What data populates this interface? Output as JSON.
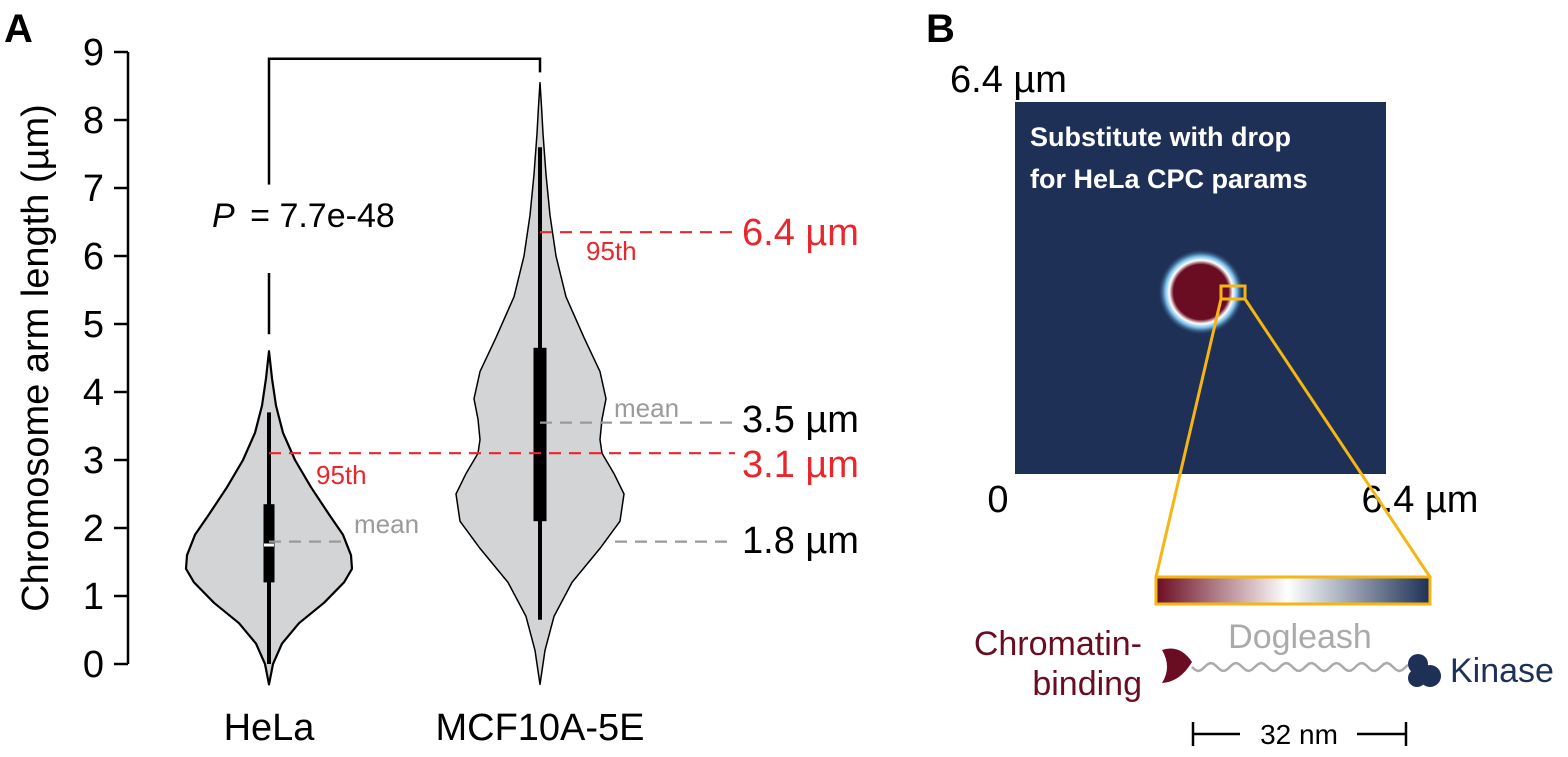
{
  "panel_a": {
    "label": "A",
    "chart_data": {
      "type": "violin",
      "ylabel": "Chromosome arm length (µm)",
      "ylim": [
        0,
        9
      ],
      "yticks": [
        "0",
        "1",
        "2",
        "3",
        "4",
        "5",
        "6",
        "7",
        "8",
        "9"
      ],
      "categories": [
        "HeLa",
        "MCF10A-5E"
      ],
      "series": [
        {
          "category": "HeLa",
          "color": "#d3d4d6",
          "range": [
            -0.3,
            4.6
          ],
          "whisker": [
            0.0,
            3.7
          ],
          "box": [
            1.2,
            2.35
          ],
          "median": 1.75,
          "mean": 1.8,
          "p95": 3.1
        },
        {
          "category": "MCF10A-5E",
          "color": "#d3d4d6",
          "range": [
            -0.3,
            8.55
          ],
          "whisker": [
            0.65,
            7.6
          ],
          "box": [
            2.1,
            4.65
          ],
          "median": 3.55,
          "mean": 3.55,
          "p95": 6.35
        }
      ],
      "significance": {
        "text_p": "P",
        "text_value": "= 7.7e-48",
        "y": 8.9
      },
      "annotations": {
        "mean_label": "mean",
        "p95_label": "95th",
        "value_64": "6.4 µm",
        "value_35": "3.5 µm",
        "value_31": "3.1 µm",
        "value_18": "1.8 µm"
      },
      "colors": {
        "p95_line": "#e8262b",
        "mean_line": "#9a9a9a"
      }
    }
  },
  "panel_b": {
    "label": "B",
    "top_left_label": "6.4 µm",
    "origin_label": "0",
    "right_label": "6.4 µm",
    "box_text_line1": "Substitute with drop",
    "box_text_line2": "for HeLa CPC params",
    "left_molecule_line1": "Chromatin-",
    "left_molecule_line2": "binding",
    "linker_label": "Dogleash",
    "right_molecule_label": "Kinase",
    "scalebar_label": "32 nm",
    "colors": {
      "background": "#1e3056",
      "droplet": "#6b0d22",
      "zoom": "#f5b614",
      "chromatin": "#6b0d22",
      "kinase": "#1e3056",
      "linker": "#aaaaaa"
    }
  }
}
